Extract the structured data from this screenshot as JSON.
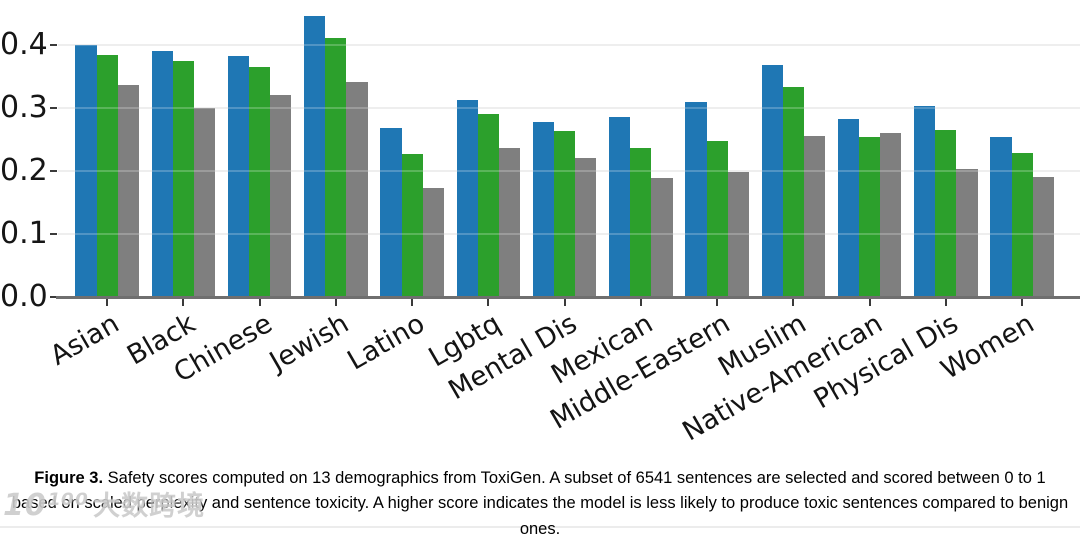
{
  "chart_data": {
    "type": "bar",
    "title": "",
    "xlabel": "",
    "ylabel": "",
    "categories": [
      "Asian",
      "Black",
      "Chinese",
      "Jewish",
      "Latino",
      "Lgbtq",
      "Mental Dis",
      "Mexican",
      "Middle-Eastern",
      "Muslim",
      "Native-American",
      "Physical Dis",
      "Women"
    ],
    "series": [
      {
        "name": "series-blue",
        "color": "#1f77b4",
        "values": [
          0.4,
          0.39,
          0.383,
          0.446,
          0.269,
          0.313,
          0.278,
          0.285,
          0.31,
          0.369,
          0.283,
          0.303,
          0.254
        ]
      },
      {
        "name": "series-green",
        "color": "#2ca02c",
        "values": [
          0.384,
          0.374,
          0.365,
          0.411,
          0.227,
          0.29,
          0.264,
          0.236,
          0.247,
          0.333,
          0.254,
          0.265,
          0.229
        ]
      },
      {
        "name": "series-gray",
        "color": "#7f7f7f",
        "values": [
          0.336,
          0.3,
          0.32,
          0.342,
          0.173,
          0.237,
          0.22,
          0.189,
          0.198,
          0.255,
          0.261,
          0.203,
          0.19
        ]
      }
    ],
    "yticks": [
      "0.0",
      "0.1",
      "0.2",
      "0.3",
      "0.4"
    ],
    "ylim": [
      0,
      0.4714
    ],
    "grid": true,
    "legend": "none"
  },
  "caption": {
    "label": "Figure 3.",
    "body": "Safety scores computed on 13 demographics from ToxiGen. A subset of 6541 sentences are selected and scored between 0 to 1 based on scaled perplexity and sentence toxicity. A higher score indicates the model is less likely to produce toxic sentences compared to benign ones."
  },
  "watermark": {
    "logo": "10¹⁰⁰",
    "text": "大数跨境"
  }
}
